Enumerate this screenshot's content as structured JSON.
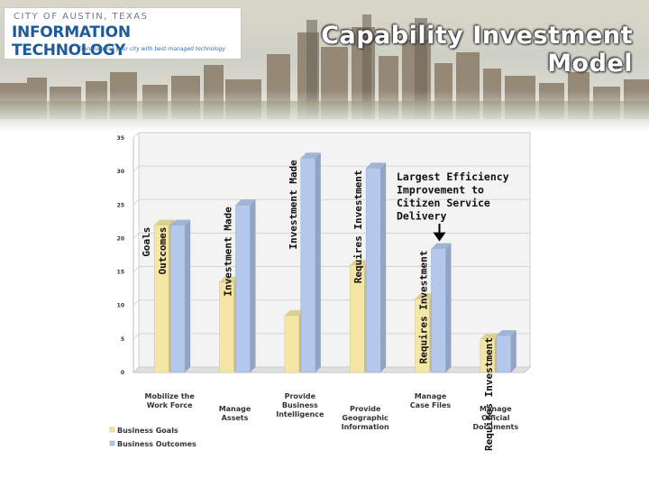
{
  "header": {
    "org_line": "CITY OF AUSTIN, TEXAS",
    "dept": "INFORMATION TECHNOLOGY",
    "tagline": "Transforming your city with best-managed technology",
    "title_line1": "Capability Investment",
    "title_line2": "Model"
  },
  "chart_data": {
    "type": "bar",
    "categories": [
      [
        "Mobilize the",
        "Work Force"
      ],
      [
        "Manage",
        "Assets"
      ],
      [
        "Provide",
        "Business",
        "Intelligence"
      ],
      [
        "Provide",
        "Geographic",
        "Information"
      ],
      [
        "Manage",
        "Case Files"
      ],
      [
        "Manage",
        "Official",
        "Documents"
      ]
    ],
    "series": [
      {
        "name": "Business Goals",
        "values": [
          22,
          13.5,
          8.5,
          16,
          11,
          5
        ],
        "color": "#f6e6a6"
      },
      {
        "name": "Business Outcomes",
        "values": [
          22,
          25,
          32,
          30.5,
          18.5,
          5.5
        ],
        "color": "#b3c8ec"
      }
    ],
    "ylim": [
      0,
      35
    ],
    "yticks": [
      0,
      5,
      10,
      15,
      20,
      25,
      30,
      35
    ],
    "grid": true,
    "legend": "bottom-left",
    "bar_labels": [
      {
        "text": "Goals",
        "category": 0,
        "series": 0
      },
      {
        "text": "Outcomes",
        "category": 0,
        "series": 1
      },
      {
        "text": "Investment Made",
        "category": 1,
        "series": 1
      },
      {
        "text": "Investment Made",
        "category": 2,
        "series": 1
      },
      {
        "text": "Requires Investment",
        "category": 3,
        "series": 1
      },
      {
        "text": "Requires Investment",
        "category": 4,
        "series": 1
      },
      {
        "text": "Requires Investment",
        "category": 5,
        "series": 1
      }
    ],
    "annotation": {
      "lines": [
        "Largest Efficiency",
        "Improvement to",
        "Citizen Service",
        "Delivery"
      ],
      "points_to_category": 4
    }
  }
}
